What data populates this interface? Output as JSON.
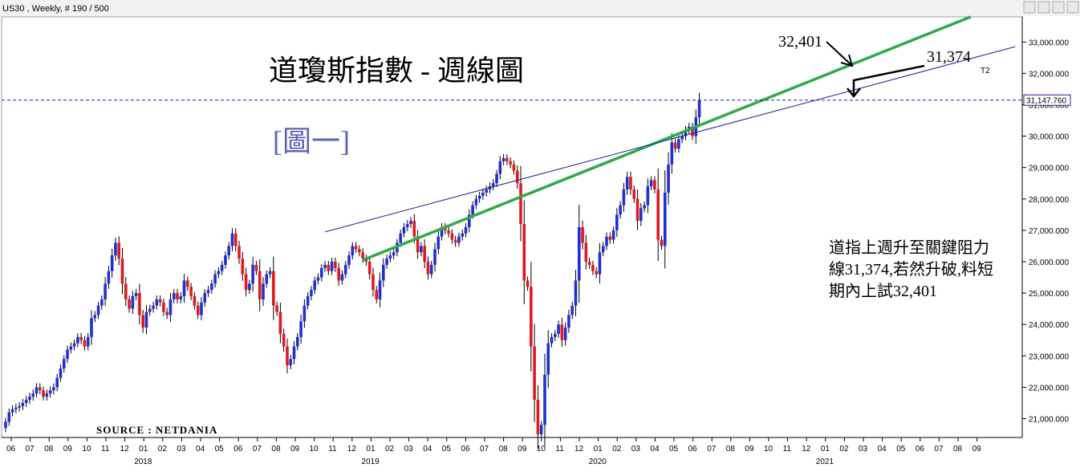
{
  "header": {
    "symbol_line": "US30 , Weekly, # 190 / 500"
  },
  "annotations": {
    "title": "道瓊斯指數 - 週線圖",
    "figure_label": "[圖一]",
    "target_upper": "32,401",
    "target_lower": "31,374",
    "trendline_tag": "T2",
    "note_lines": [
      "道指上週升至關鍵阻力",
      "線31,374,若然升破,料短",
      "期內上試32,401"
    ],
    "source": "SOURCE : NETDANIA"
  },
  "colors": {
    "up": "#1f2fd6",
    "down": "#e0191f",
    "green_line": "#2eaa4a",
    "blue_line": "#1f1f9a",
    "dashed": "#1f1f9a"
  },
  "chart_data": {
    "type": "candlestick",
    "title": "道瓊斯指數 - 週線圖",
    "ylim": [
      20400,
      33800
    ],
    "y_ticks": [
      "21,000.000",
      "22,000.000",
      "23,000.000",
      "24,000.000",
      "25,000.000",
      "26,000.000",
      "27,000.000",
      "28,000.000",
      "29,000.000",
      "30,000.000",
      "31,000.000",
      "32,000.000",
      "33,000.000"
    ],
    "y_tick_values": [
      21000,
      22000,
      23000,
      24000,
      25000,
      26000,
      27000,
      28000,
      29000,
      30000,
      31000,
      32000,
      33000
    ],
    "current_price_label": "31,147.760",
    "current_price": 31147.76,
    "x_month_labels": [
      "06",
      "07",
      "08",
      "09",
      "10",
      "11",
      "12",
      "01",
      "02",
      "03",
      "04",
      "05",
      "06",
      "07",
      "08",
      "09",
      "10",
      "11",
      "12",
      "01",
      "02",
      "03",
      "04",
      "05",
      "06",
      "07",
      "08",
      "09",
      "10",
      "11",
      "12",
      "01",
      "02",
      "03",
      "04",
      "05",
      "06",
      "07",
      "08",
      "09",
      "10",
      "11",
      "12",
      "01",
      "02",
      "03",
      "04",
      "05",
      "06",
      "07",
      "08",
      "09"
    ],
    "x_year_labels": [
      {
        "label": "2018",
        "month_index": 7
      },
      {
        "label": "2019",
        "month_index": 19
      },
      {
        "label": "2020",
        "month_index": 31
      },
      {
        "label": "2021",
        "month_index": 43
      }
    ],
    "weekly_close": [
      20900,
      21200,
      21300,
      21350,
      21400,
      21500,
      21600,
      21700,
      21800,
      22000,
      21900,
      21700,
      21800,
      21900,
      22000,
      22300,
      22600,
      22900,
      23200,
      23300,
      23400,
      23600,
      23500,
      23300,
      23600,
      24200,
      24300,
      24600,
      24800,
      25300,
      25700,
      26200,
      26600,
      26100,
      25300,
      24800,
      24500,
      24900,
      25000,
      24300,
      23900,
      24400,
      24500,
      24600,
      24800,
      24700,
      24400,
      24300,
      24800,
      25000,
      24800,
      24900,
      25400,
      25200,
      24900,
      24600,
      24300,
      24700,
      25000,
      25100,
      25300,
      25600,
      25700,
      25900,
      26200,
      26500,
      26900,
      26500,
      26100,
      25600,
      25100,
      25300,
      25900,
      25700,
      24800,
      25300,
      25600,
      25700,
      24600,
      24400,
      23700,
      23300,
      22700,
      22900,
      23300,
      23600,
      24100,
      24600,
      24900,
      25100,
      25400,
      25500,
      25800,
      25900,
      25700,
      26000,
      25800,
      25400,
      25600,
      25900,
      26200,
      26500,
      26400,
      26300,
      26100,
      26000,
      25600,
      25100,
      24800,
      25400,
      25900,
      26100,
      26200,
      26300,
      26600,
      26900,
      27100,
      27200,
      27300,
      26800,
      26300,
      26500,
      26000,
      25600,
      25900,
      26400,
      26800,
      27100,
      27000,
      26900,
      26700,
      26600,
      26800,
      26900,
      27100,
      27500,
      27800,
      28000,
      28100,
      28200,
      28300,
      28400,
      28500,
      28800,
      29200,
      29300,
      29200,
      29100,
      28900,
      28500,
      27200,
      25400,
      25200,
      23300,
      21600,
      20500,
      20800,
      22400,
      23400,
      23600,
      23700,
      24000,
      23500,
      23900,
      24300,
      24600,
      25400,
      27100,
      26600,
      26000,
      25900,
      25700,
      25600,
      26300,
      26500,
      26800,
      26700,
      27000,
      27500,
      27800,
      28300,
      28700,
      28300,
      28000,
      27300,
      27700,
      27800,
      28400,
      28600,
      28300,
      26700,
      26500,
      28200,
      29100,
      29800,
      29600,
      29900,
      30000,
      30200,
      30300,
      30000,
      30600,
      31150
    ],
    "trendlines": [
      {
        "name": "green",
        "from_week": 104,
        "from_value": 26050,
        "to_week": 281,
        "to_value": 33800
      },
      {
        "name": "blue",
        "from_week": 93,
        "from_value": 26950,
        "to_week": 294,
        "to_value": 32850
      }
    ]
  }
}
